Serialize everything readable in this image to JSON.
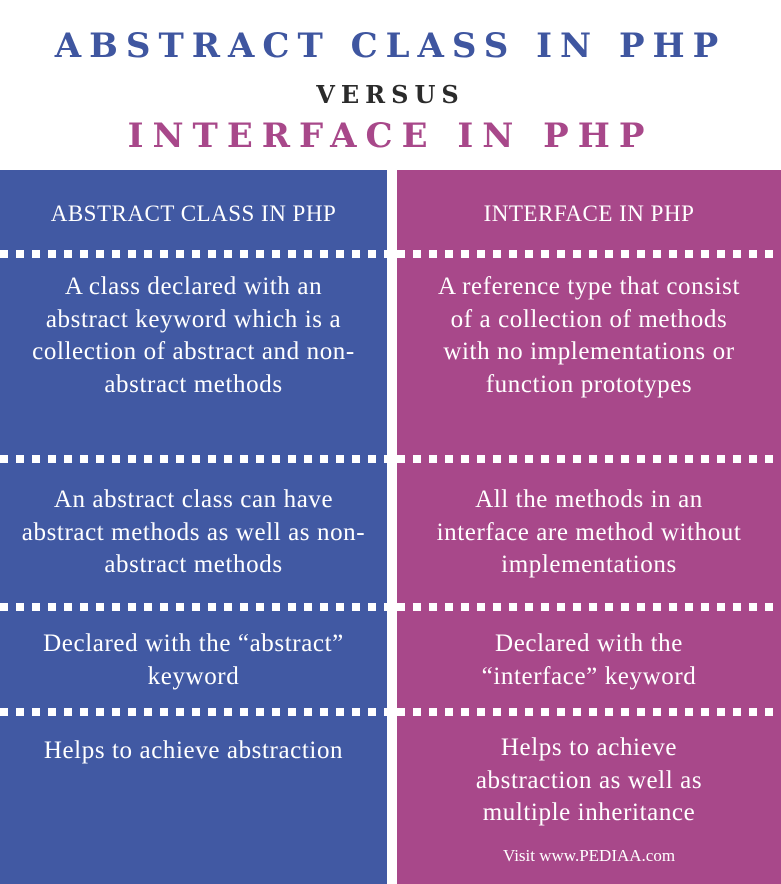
{
  "titles": {
    "main": "ABSTRACT CLASS IN PHP",
    "versus": "VERSUS",
    "secondary": "INTERFACE IN PHP"
  },
  "left": {
    "header": "ABSTRACT CLASS IN PHP",
    "rows": [
      "A class declared with an abstract keyword which is a collection of abstract and non-abstract methods",
      "An abstract class can have abstract methods as well as non-abstract methods",
      "Declared with the “abstract” keyword",
      "Helps to achieve abstraction"
    ]
  },
  "right": {
    "header": "INTERFACE IN PHP",
    "rows": [
      "A reference type that consist of a collection of methods with no implementations or function prototypes",
      "All the methods in an interface are method without implementations",
      "Declared with the “interface” keyword",
      "Helps to achieve abstraction as well as multiple inheritance"
    ]
  },
  "footer": "Visit www.PEDIAA.com",
  "colors": {
    "left_column": "#4159a3",
    "right_column": "#a8488a",
    "title_blue": "#3f56a0",
    "title_magenta": "#a8488a"
  }
}
